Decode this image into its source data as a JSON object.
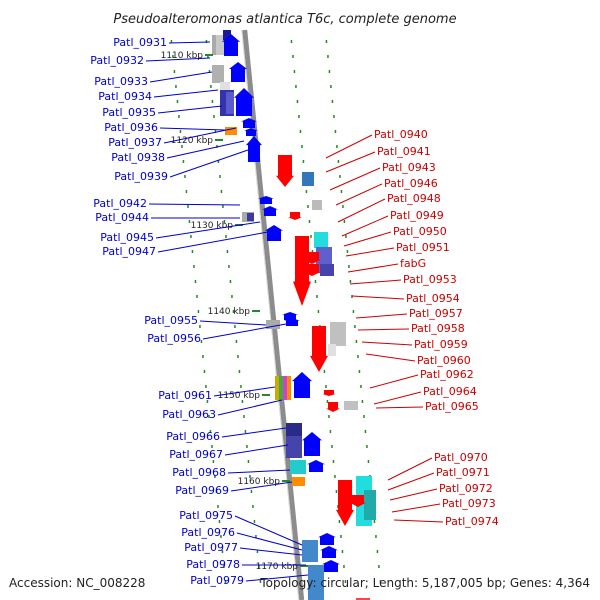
{
  "title": "Pseudoalteromonas atlantica T6c, complete genome",
  "footer": {
    "accession": "Accession: NC_008228",
    "topology": "Topology: circular; Length: 5,187,005 bp; Genes: 4,364"
  },
  "colors": {
    "backbone": "#8c8c8c",
    "forward_gene": "#0000ff",
    "reverse_gene": "#ff0000",
    "left_label": "#0000cc",
    "right_label": "#cc0000",
    "tick": "#228b22"
  },
  "ticks": [
    "1110 kbp",
    "1120 kbp",
    "1130 kbp",
    "1140 kbp",
    "1150 kbp",
    "1160 kbp",
    "1170 kbp"
  ],
  "left_labels": [
    "Patl_0931",
    "Patl_0932",
    "Patl_0933",
    "Patl_0934",
    "Patl_0935",
    "Patl_0936",
    "Patl_0937",
    "Patl_0938",
    "Patl_0939",
    "Patl_0942",
    "Patl_0944",
    "Patl_0945",
    "Patl_0947",
    "Patl_0955",
    "Patl_0956",
    "Patl_0961",
    "Patl_0963",
    "Patl_0966",
    "Patl_0967",
    "Patl_0968",
    "Patl_0969",
    "Patl_0975",
    "Patl_0976",
    "Patl_0977",
    "Patl_0978",
    "Patl_0979"
  ],
  "right_labels": [
    "Patl_0940",
    "Patl_0941",
    "Patl_0943",
    "Patl_0946",
    "Patl_0948",
    "Patl_0949",
    "Patl_0950",
    "Patl_0951",
    "fabG",
    "Patl_0953",
    "Patl_0954",
    "Patl_0957",
    "Patl_0958",
    "Patl_0959",
    "Patl_0960",
    "Patl_0962",
    "Patl_0964",
    "Patl_0965",
    "Patl_0970",
    "Patl_0971",
    "Patl_0972",
    "Patl_0973",
    "Patl_0974"
  ]
}
